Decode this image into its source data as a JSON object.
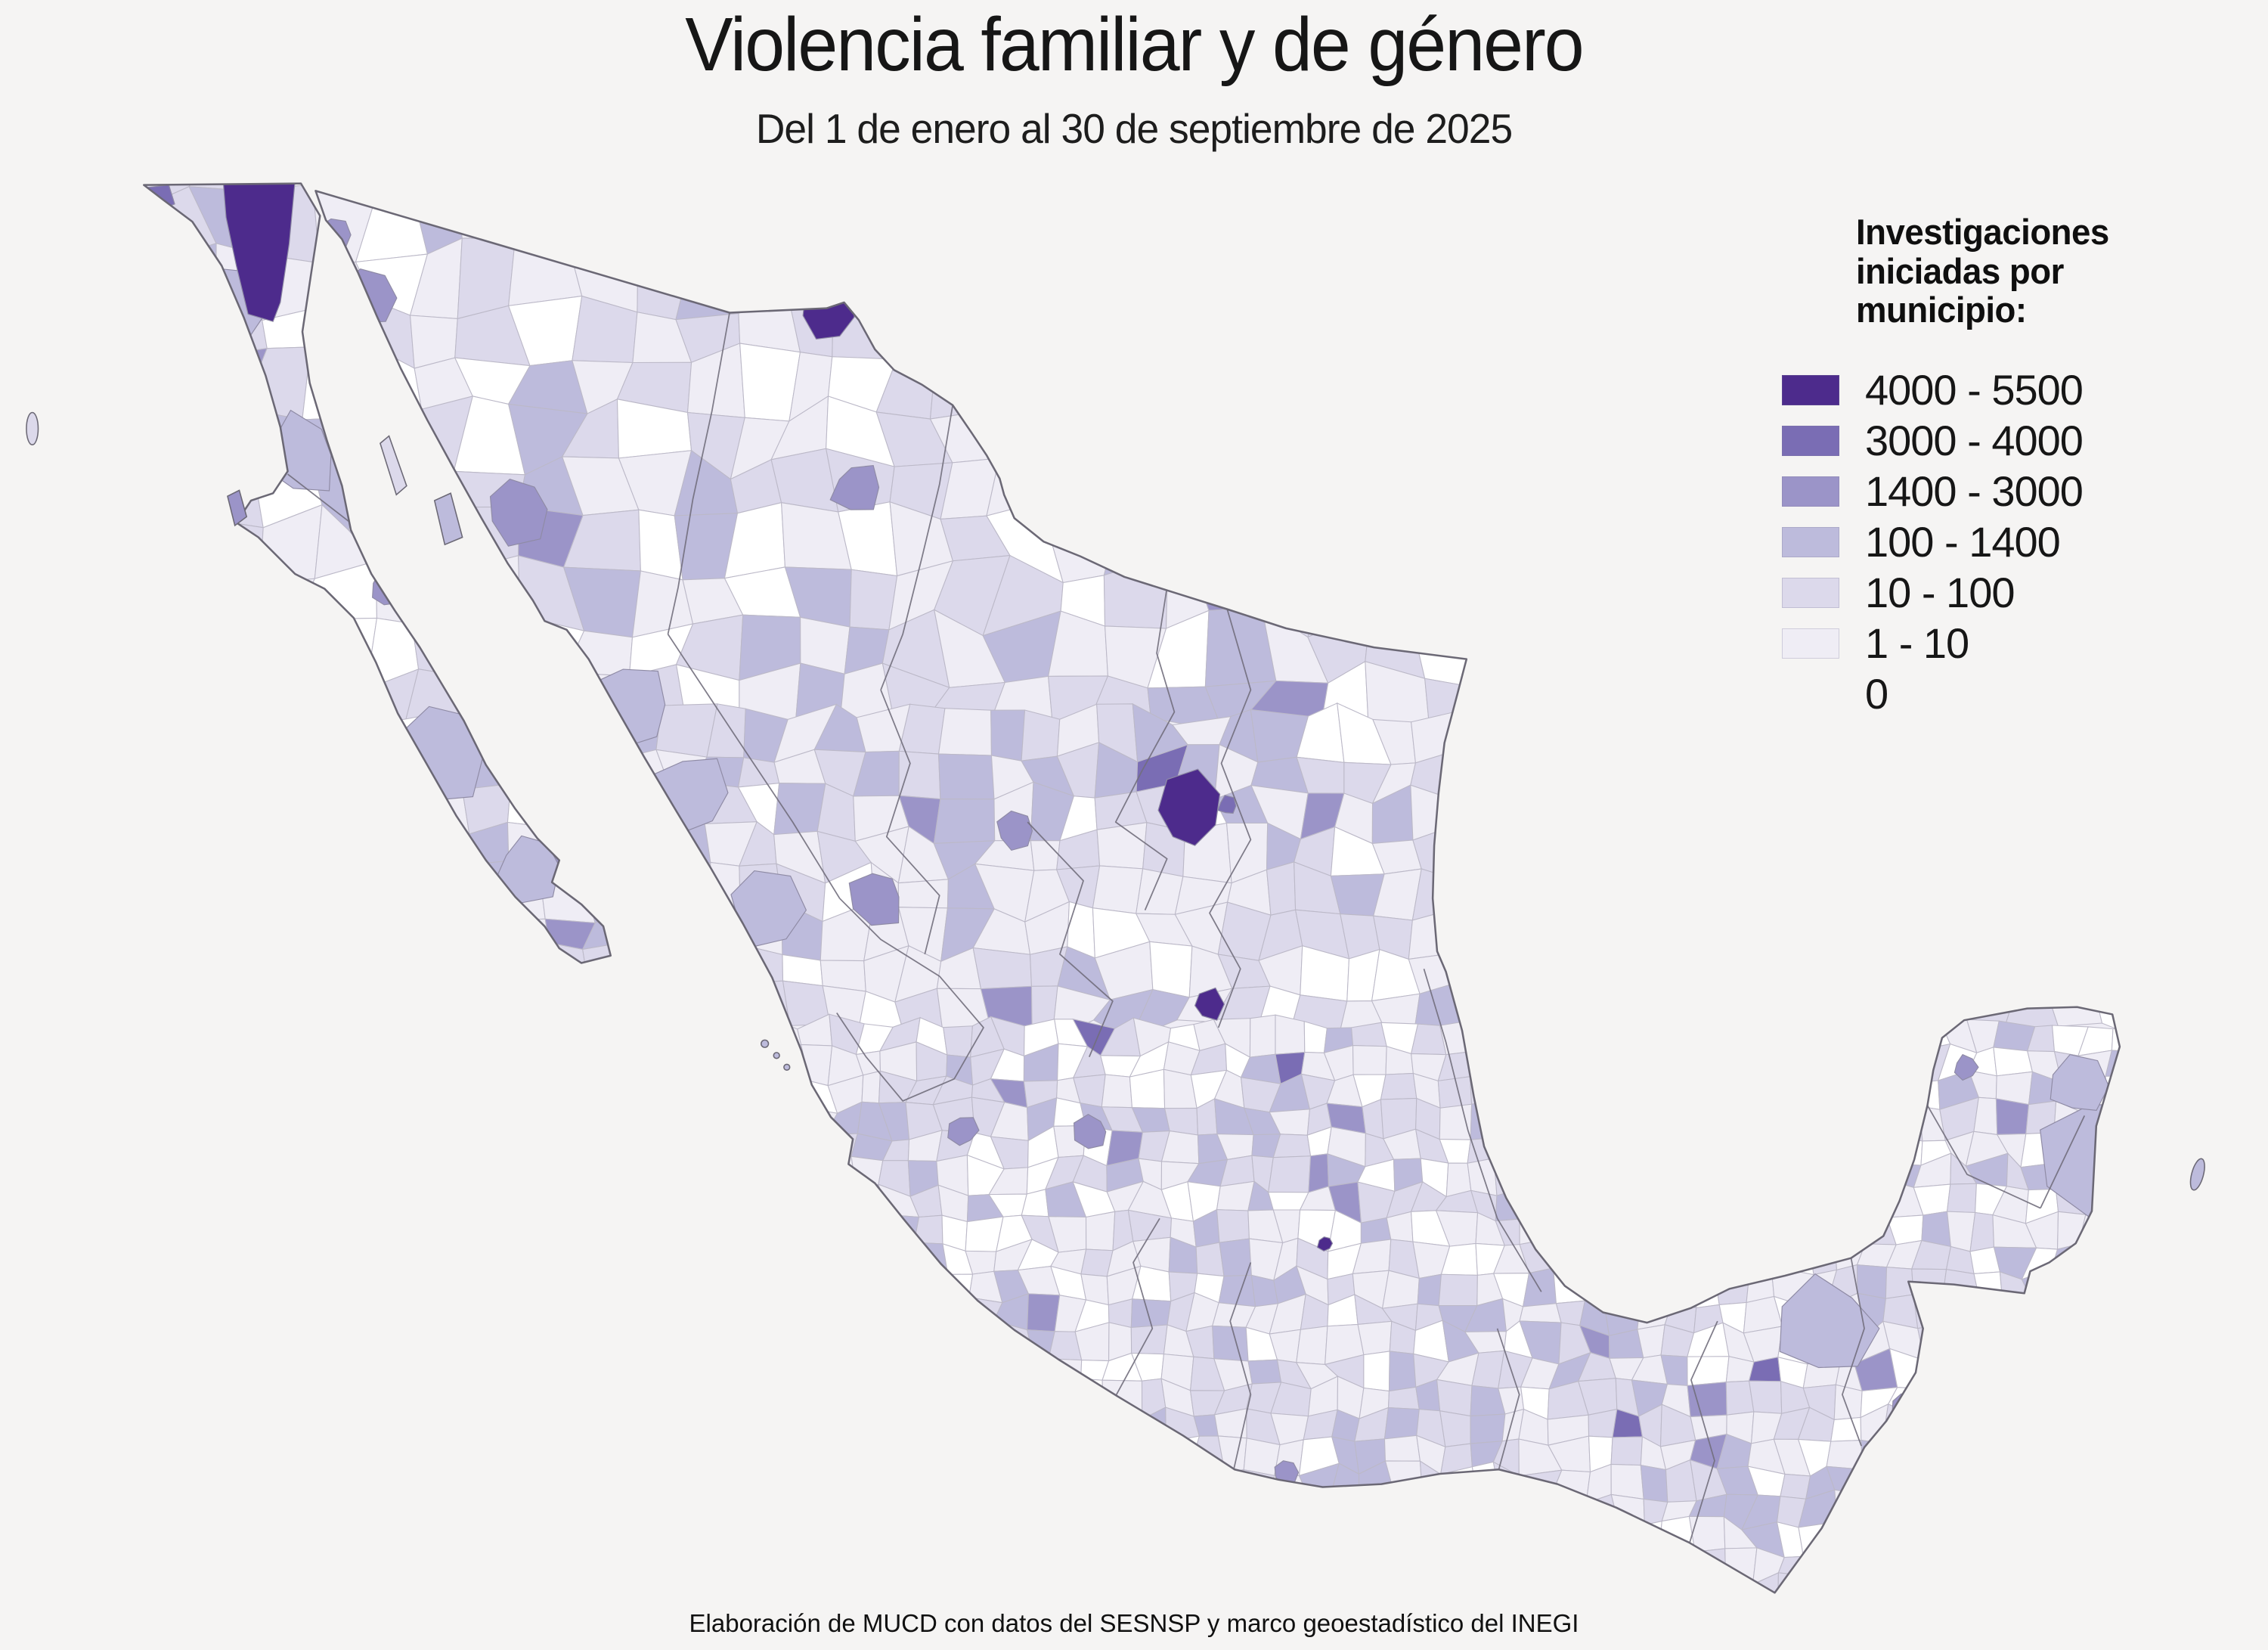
{
  "title": "Violencia familiar y de género",
  "subtitle": "Del 1 de enero al 30 de septiembre de 2025",
  "legend": {
    "title": "Investigaciones iniciadas por municipio:",
    "items": [
      {
        "label": "4000 - 5500",
        "color": "#4d2b8c"
      },
      {
        "label": "3000 - 4000",
        "color": "#7a6db4"
      },
      {
        "label": "1400 - 3000",
        "color": "#9b94c8"
      },
      {
        "label": "100 - 1400",
        "color": "#bdbbdc"
      },
      {
        "label": "10 - 100",
        "color": "#dcd9eb"
      },
      {
        "label": "1 - 10",
        "color": "#efedf5"
      },
      {
        "label": "0",
        "color": "#ffffff"
      }
    ]
  },
  "footer": "Elaboración de MUCD con datos del SESNSP y marco geoestadístico del INEGI",
  "map": {
    "type": "choropleth",
    "background_color": "#f5f4f3",
    "national_border_color": "#6b6875",
    "municipal_border_color": "#bcb9c8"
  }
}
